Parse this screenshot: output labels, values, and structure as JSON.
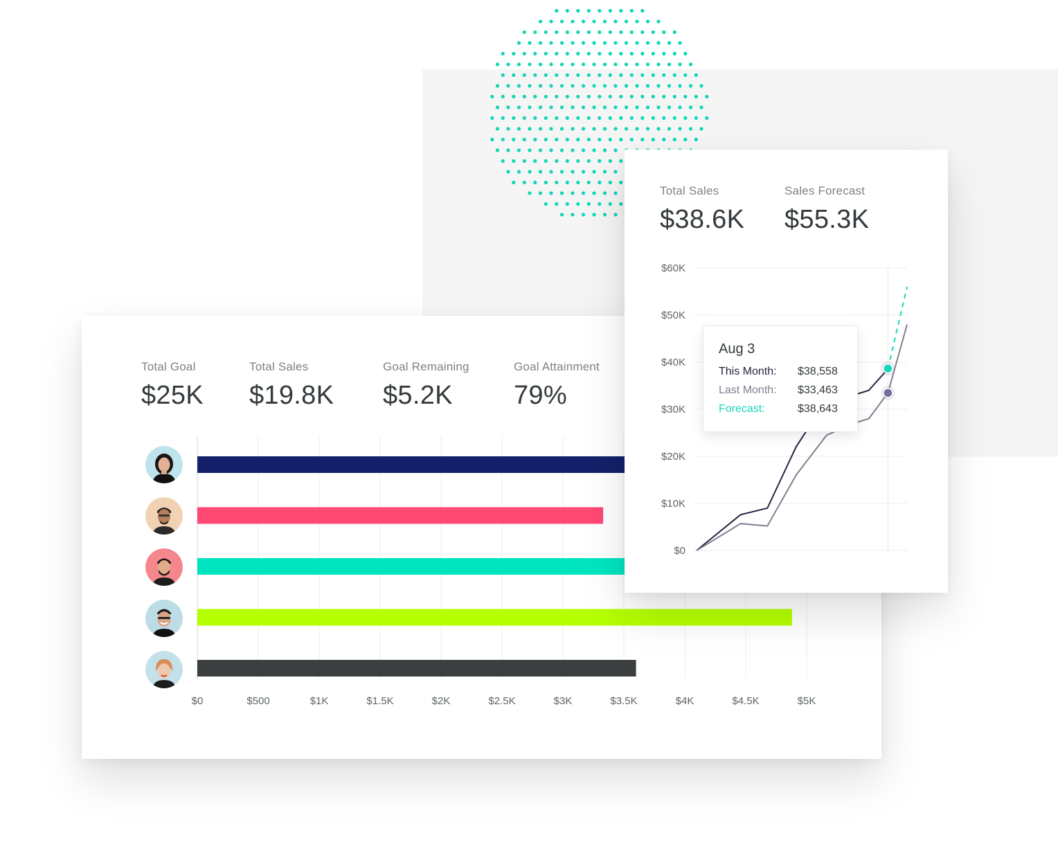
{
  "colors": {
    "accent_teal": "#00e5c0",
    "this_month_line": "#2a1f3d",
    "last_month_line": "#857c91",
    "forecast_line": "#1ad6bb",
    "dot_pattern": "#10d6b5",
    "background_panel": "#f4f5f4"
  },
  "goal_card": {
    "stats": [
      {
        "label": "Total Goal",
        "value": "$25K"
      },
      {
        "label": "Total Sales",
        "value": "$19.8K"
      },
      {
        "label": "Goal Remaining",
        "value": "$5.2K"
      },
      {
        "label": "Goal Attainment",
        "value": "79%"
      }
    ]
  },
  "sales_card": {
    "stats": [
      {
        "label": "Total Sales",
        "value": "$38.6K"
      },
      {
        "label": "Sales Forecast",
        "value": "$55.3K"
      }
    ],
    "tooltip": {
      "date": "Aug 3",
      "rows": [
        {
          "label": "This Month:",
          "value": "$38,558",
          "color": "#2a1f3d"
        },
        {
          "label": "Last Month:",
          "value": "$33,463",
          "color": "#857c91"
        },
        {
          "label": "Forecast:",
          "value": "$38,643",
          "color": "#1ad6bb"
        }
      ]
    }
  },
  "chart_data": [
    {
      "type": "bar",
      "orientation": "horizontal",
      "categories": [
        "rep-1",
        "rep-2",
        "rep-3",
        "rep-4",
        "rep-5"
      ],
      "values": [
        3600,
        3330,
        3650,
        4880,
        3600
      ],
      "bar_colors": [
        "#14216a",
        "#ff4874",
        "#00e5c0",
        "#b4ff00",
        "#3b3f40"
      ],
      "xlim": [
        0,
        5000
      ],
      "xticks": [
        0,
        500,
        1000,
        1500,
        2000,
        2500,
        3000,
        3500,
        4000,
        4500,
        5000
      ],
      "xtick_labels": [
        "$0",
        "$500",
        "$1K",
        "$1.5K",
        "$2K",
        "$2.5K",
        "$3K",
        "$3.5K",
        "$4K",
        "$4.5K",
        "$5K"
      ],
      "grid": true
    },
    {
      "type": "line",
      "ylim": [
        0,
        60000
      ],
      "yticks": [
        0,
        10000,
        20000,
        30000,
        40000,
        50000,
        60000
      ],
      "ytick_labels": [
        "$0",
        "$10K",
        "$20K",
        "$30K",
        "$40K",
        "$50K",
        "$60K"
      ],
      "xlim": [
        0,
        11
      ],
      "grid": true,
      "series": [
        {
          "key": "this_month",
          "x": [
            0,
            2.3,
            3.7,
            5.2,
            6.8,
            8.2,
            9.0,
            10.0
          ],
          "values": [
            0,
            7600,
            9000,
            22000,
            32000,
            33000,
            34000,
            38558
          ]
        },
        {
          "key": "last_month",
          "x": [
            0,
            2.3,
            3.7,
            5.2,
            6.8,
            8.2,
            9.0,
            10.0,
            11.0
          ],
          "values": [
            0,
            5700,
            5200,
            16000,
            24500,
            27000,
            28000,
            33463,
            48000
          ]
        },
        {
          "key": "forecast",
          "style": "dashed",
          "x": [
            10.0,
            11.0
          ],
          "values": [
            38643,
            56000
          ]
        }
      ],
      "highlight_x": 10.0
    }
  ]
}
